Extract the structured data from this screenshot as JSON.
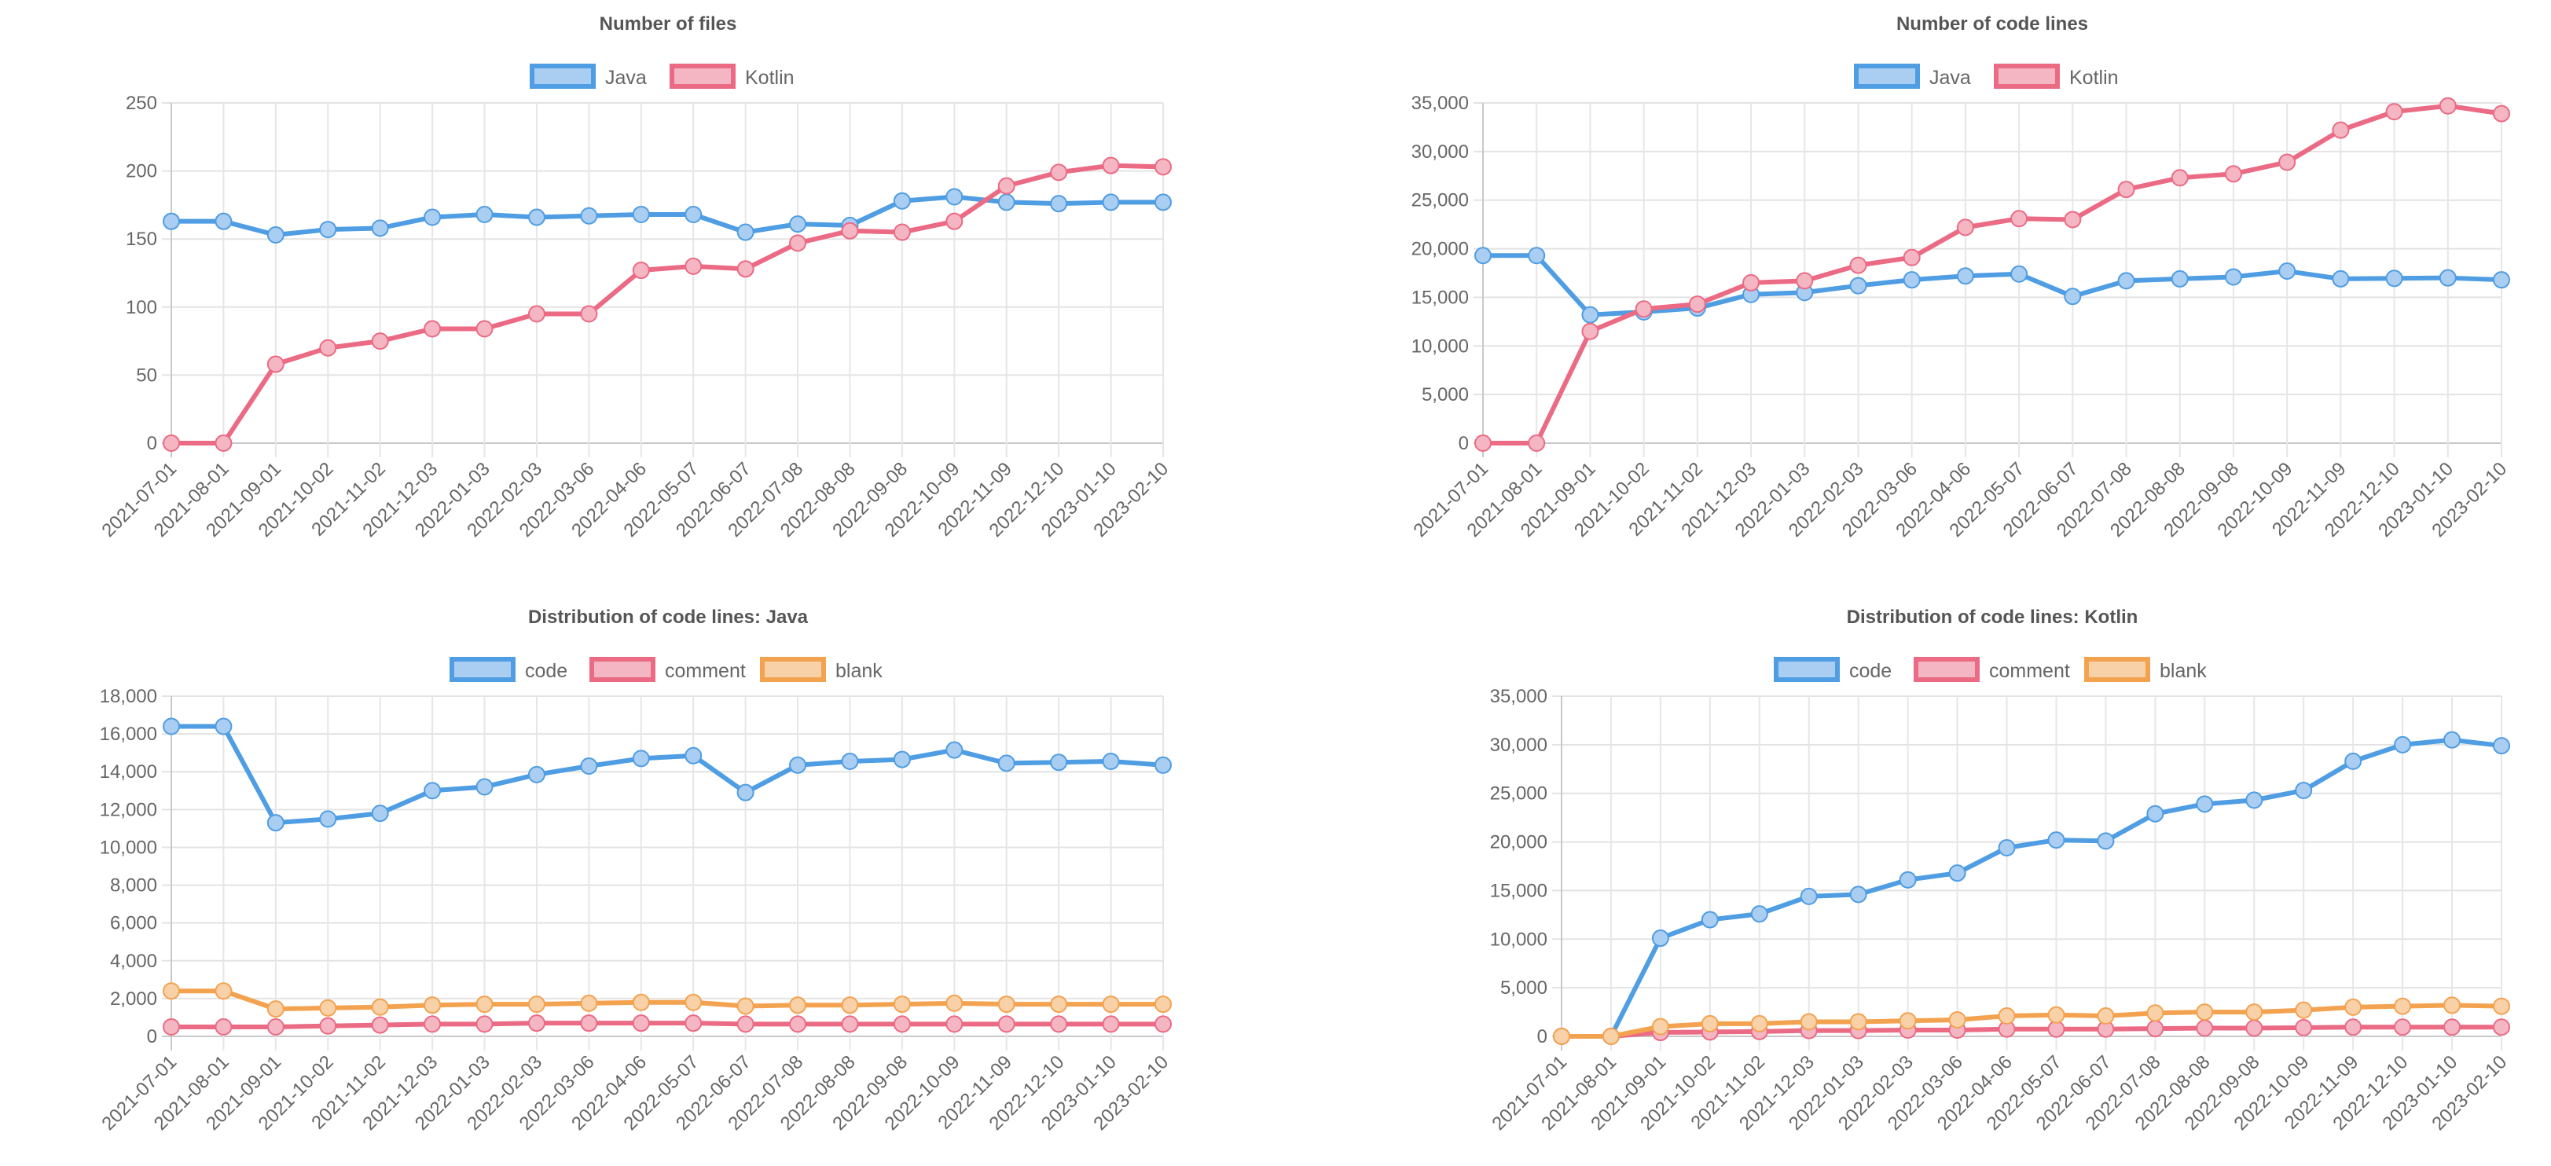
{
  "colors": {
    "blue": "#4f9de2",
    "red": "#eb6a84",
    "orange": "#f3a24f",
    "blue_fill": "#aacdf2",
    "red_fill": "#f5b6c3",
    "orange_fill": "#f9d1a8"
  },
  "chart_data": [
    {
      "type": "line",
      "title": "Number of files",
      "categories": [
        "2021-07-01",
        "2021-08-01",
        "2021-09-01",
        "2021-10-02",
        "2021-11-02",
        "2021-12-03",
        "2022-01-03",
        "2022-02-03",
        "2022-03-06",
        "2022-04-06",
        "2022-05-07",
        "2022-06-07",
        "2022-07-08",
        "2022-08-08",
        "2022-09-08",
        "2022-10-09",
        "2022-11-09",
        "2022-12-10",
        "2023-01-10",
        "2023-02-10"
      ],
      "ylim": [
        0,
        250
      ],
      "yticks": [
        0,
        50,
        100,
        150,
        200,
        250
      ],
      "ytick_labels": [
        "0",
        "50",
        "100",
        "150",
        "200",
        "250"
      ],
      "legend": "top",
      "grid": true,
      "series": [
        {
          "name": "Java",
          "color": "blue",
          "values": [
            163,
            163,
            153,
            157,
            158,
            166,
            168,
            166,
            167,
            168,
            168,
            155,
            161,
            160,
            178,
            181,
            177,
            176,
            177,
            177
          ]
        },
        {
          "name": "Kotlin",
          "color": "red",
          "values": [
            0,
            0,
            58,
            70,
            75,
            84,
            84,
            95,
            95,
            127,
            130,
            128,
            147,
            156,
            155,
            163,
            189,
            199,
            204,
            203
          ]
        }
      ]
    },
    {
      "type": "line",
      "title": "Number of code lines",
      "categories": [
        "2021-07-01",
        "2021-08-01",
        "2021-09-01",
        "2021-10-02",
        "2021-11-02",
        "2021-12-03",
        "2022-01-03",
        "2022-02-03",
        "2022-03-06",
        "2022-04-06",
        "2022-05-07",
        "2022-06-07",
        "2022-07-08",
        "2022-08-08",
        "2022-09-08",
        "2022-10-09",
        "2022-11-09",
        "2022-12-10",
        "2023-01-10",
        "2023-02-10"
      ],
      "ylim": [
        0,
        35000
      ],
      "yticks": [
        0,
        5000,
        10000,
        15000,
        20000,
        25000,
        30000,
        35000
      ],
      "ytick_labels": [
        "0",
        "5,000",
        "10,000",
        "15,000",
        "20,000",
        "25,000",
        "30,000",
        "35,000"
      ],
      "legend": "top",
      "grid": true,
      "series": [
        {
          "name": "Java",
          "color": "blue",
          "values": [
            19300,
            19300,
            13200,
            13500,
            13900,
            15300,
            15500,
            16200,
            16800,
            17200,
            17400,
            15100,
            16700,
            16900,
            17100,
            17700,
            16900,
            16950,
            17000,
            16800
          ]
        },
        {
          "name": "Kotlin",
          "color": "red",
          "values": [
            0,
            0,
            11500,
            13800,
            14300,
            16500,
            16700,
            18300,
            19100,
            22200,
            23100,
            23000,
            26100,
            27300,
            27700,
            28900,
            32200,
            34100,
            34700,
            33900
          ]
        }
      ]
    },
    {
      "type": "line",
      "title": "Distribution of code lines: Java",
      "categories": [
        "2021-07-01",
        "2021-08-01",
        "2021-09-01",
        "2021-10-02",
        "2021-11-02",
        "2021-12-03",
        "2022-01-03",
        "2022-02-03",
        "2022-03-06",
        "2022-04-06",
        "2022-05-07",
        "2022-06-07",
        "2022-07-08",
        "2022-08-08",
        "2022-09-08",
        "2022-10-09",
        "2022-11-09",
        "2022-12-10",
        "2023-01-10",
        "2023-02-10"
      ],
      "ylim": [
        0,
        18000
      ],
      "yticks": [
        0,
        2000,
        4000,
        6000,
        8000,
        10000,
        12000,
        14000,
        16000,
        18000
      ],
      "ytick_labels": [
        "0",
        "2,000",
        "4,000",
        "6,000",
        "8,000",
        "10,000",
        "12,000",
        "14,000",
        "16,000",
        "18,000"
      ],
      "legend": "top",
      "grid": true,
      "series": [
        {
          "name": "code",
          "color": "blue",
          "values": [
            16400,
            16400,
            11300,
            11500,
            11800,
            13000,
            13200,
            13850,
            14300,
            14700,
            14850,
            12900,
            14350,
            14550,
            14650,
            15150,
            14450,
            14500,
            14550,
            14350
          ]
        },
        {
          "name": "comment",
          "color": "red",
          "values": [
            500,
            500,
            500,
            550,
            600,
            650,
            650,
            700,
            700,
            700,
            700,
            650,
            650,
            650,
            650,
            650,
            650,
            650,
            650,
            650
          ]
        },
        {
          "name": "blank",
          "color": "orange",
          "values": [
            2400,
            2400,
            1450,
            1500,
            1550,
            1650,
            1700,
            1700,
            1750,
            1800,
            1800,
            1600,
            1650,
            1650,
            1700,
            1750,
            1700,
            1700,
            1700,
            1700
          ]
        }
      ]
    },
    {
      "type": "line",
      "title": "Distribution of code lines: Kotlin",
      "categories": [
        "2021-07-01",
        "2021-08-01",
        "2021-09-01",
        "2021-10-02",
        "2021-11-02",
        "2021-12-03",
        "2022-01-03",
        "2022-02-03",
        "2022-03-06",
        "2022-04-06",
        "2022-05-07",
        "2022-06-07",
        "2022-07-08",
        "2022-08-08",
        "2022-09-08",
        "2022-10-09",
        "2022-11-09",
        "2022-12-10",
        "2023-01-10",
        "2023-02-10"
      ],
      "ylim": [
        0,
        35000
      ],
      "yticks": [
        0,
        5000,
        10000,
        15000,
        20000,
        25000,
        30000,
        35000
      ],
      "ytick_labels": [
        "0",
        "5,000",
        "10,000",
        "15,000",
        "20,000",
        "25,000",
        "30,000",
        "35,000"
      ],
      "legend": "top",
      "grid": true,
      "series": [
        {
          "name": "code",
          "color": "blue",
          "values": [
            0,
            0,
            10100,
            12000,
            12600,
            14400,
            14600,
            16100,
            16800,
            19400,
            20200,
            20100,
            22900,
            23900,
            24300,
            25300,
            28300,
            30000,
            30500,
            29900
          ]
        },
        {
          "name": "comment",
          "color": "red",
          "values": [
            0,
            0,
            400,
            450,
            500,
            600,
            600,
            650,
            650,
            750,
            750,
            750,
            800,
            850,
            850,
            900,
            950,
            950,
            950,
            950
          ]
        },
        {
          "name": "blank",
          "color": "orange",
          "values": [
            0,
            0,
            1000,
            1300,
            1300,
            1500,
            1500,
            1600,
            1700,
            2100,
            2200,
            2100,
            2400,
            2500,
            2500,
            2700,
            3000,
            3100,
            3200,
            3100
          ]
        }
      ]
    }
  ]
}
